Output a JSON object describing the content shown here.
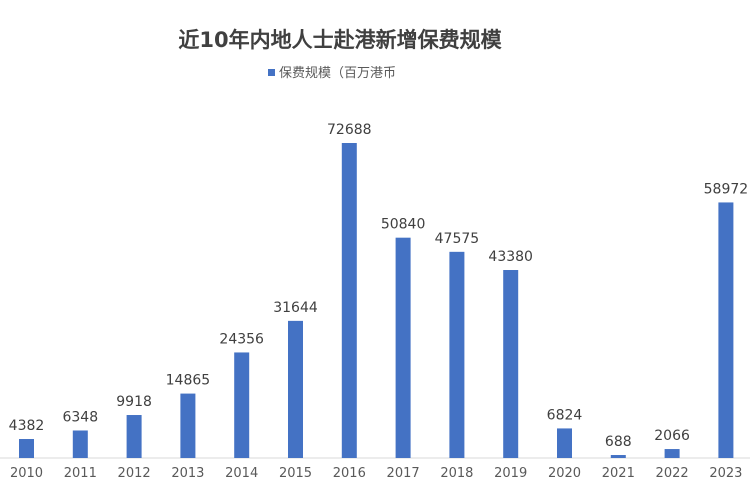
{
  "chart_data": {
    "type": "bar",
    "title": "近10年内地人士赴港新增保费规模",
    "xlabel": "",
    "ylabel": "",
    "legend": {
      "position": "top-center",
      "entries": [
        "保费规模（百万港币"
      ]
    },
    "categories": [
      "2010",
      "2011",
      "2012",
      "2013",
      "2014",
      "2015",
      "2016",
      "2017",
      "2018",
      "2019",
      "2020",
      "2021",
      "2022",
      "2023"
    ],
    "series": [
      {
        "name": "保费规模（百万港币",
        "values": [
          4382,
          6348,
          9918,
          14865,
          24356,
          31644,
          72688,
          50840,
          47575,
          43380,
          6824,
          688,
          2066,
          58972
        ],
        "labels": [
          "4382",
          "6348",
          "9918",
          "14865",
          "24356",
          "31644",
          "72688",
          "50840",
          "47575",
          "43380",
          "6824",
          "688",
          "2066",
          "58972"
        ]
      }
    ],
    "ylim": [
      0,
      75000
    ],
    "grid": false,
    "colors": {
      "bar": "#4472C4",
      "axis": "#D9D9D9"
    }
  }
}
